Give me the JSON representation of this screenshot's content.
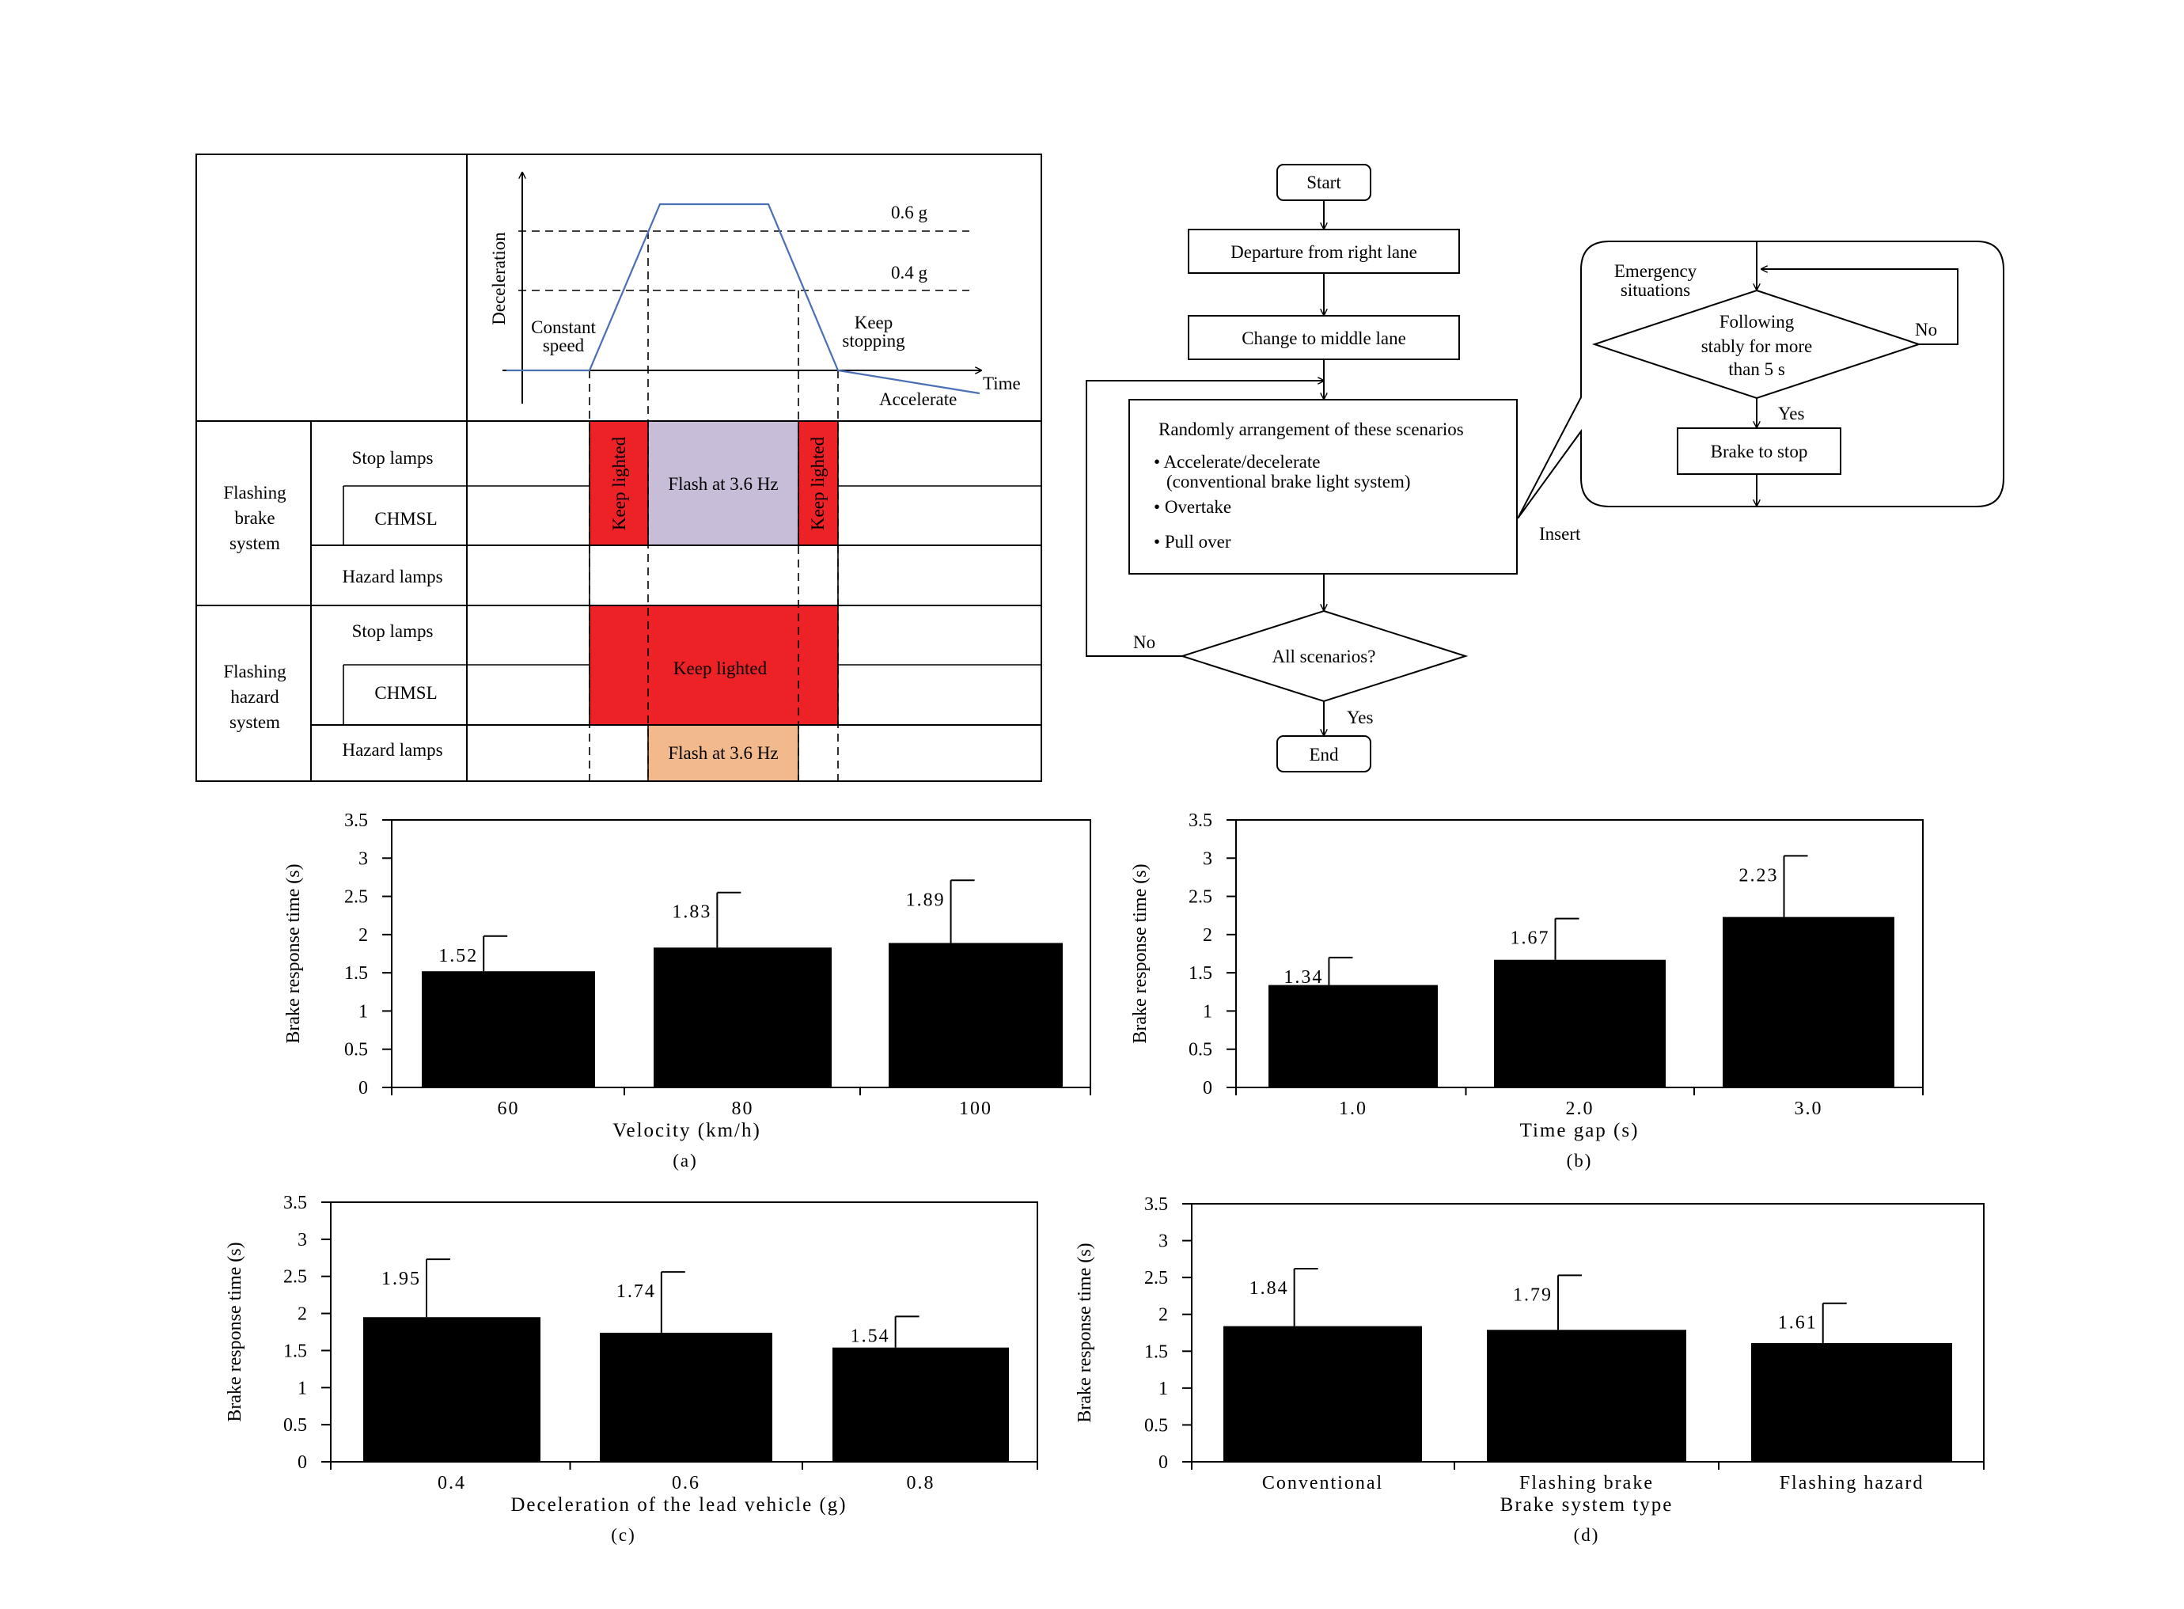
{
  "timing": {
    "axis_y": "Deceleration",
    "axis_x": "Time",
    "level_high": "0.6 g",
    "level_low": "0.4 g",
    "phase_constant": [
      "Constant",
      "speed"
    ],
    "phase_keep": [
      "Keep",
      "stopping"
    ],
    "phase_accel": "Accelerate",
    "group1": [
      "Flashing",
      "brake",
      "system"
    ],
    "group2": [
      "Flashing",
      "hazard",
      "system"
    ],
    "row_stop": "Stop lamps",
    "row_chmsl": "CHMSL",
    "row_hazard": "Hazard lamps",
    "keep_lighted": "Keep lighted",
    "flash": "Flash at 3.6 Hz",
    "colors": {
      "red": "#ec2227",
      "lavender": "#c7bdd8",
      "peach": "#f2b98d",
      "curve": "#4a6fb5"
    }
  },
  "flowchart": {
    "start": "Start",
    "depart": "Departure from right lane",
    "change": "Change to middle lane",
    "random_title": "Randomly arrangement of these scenarios",
    "bullet1": "Accelerate/decelerate",
    "bullet1_sub": "(conventional brake light system)",
    "bullet2": "Overtake",
    "bullet3": "Pull over",
    "decision": "All scenarios?",
    "no": "No",
    "yes": "Yes",
    "end": "End",
    "insert": "Insert",
    "emergency": [
      "Emergency",
      "situations"
    ],
    "follow": [
      "Following",
      "stably for more",
      "than 5 s"
    ],
    "brake_stop": "Brake to stop"
  },
  "chart_data": [
    {
      "type": "bar",
      "panel": "(a)",
      "xlabel": "Velocity (km/h)",
      "ylabel": "Brake response time (s)",
      "categories": [
        "60",
        "80",
        "100"
      ],
      "values": [
        1.52,
        1.83,
        1.89
      ],
      "labels": [
        "1.52",
        "1.83",
        "1.89"
      ],
      "errors": [
        0.46,
        0.72,
        0.82
      ],
      "ylim": [
        0,
        3.5
      ],
      "yticks": [
        "0",
        "0.5",
        "1",
        "1.5",
        "2",
        "2.5",
        "3",
        "3.5"
      ]
    },
    {
      "type": "bar",
      "panel": "(b)",
      "xlabel": "Time gap (s)",
      "ylabel": "Brake response time (s)",
      "categories": [
        "1.0",
        "2.0",
        "3.0"
      ],
      "values": [
        1.34,
        1.67,
        2.23
      ],
      "labels": [
        "1.34",
        "1.67",
        "2.23"
      ],
      "errors": [
        0.36,
        0.54,
        0.8
      ],
      "ylim": [
        0,
        3.5
      ],
      "yticks": [
        "0",
        "0.5",
        "1",
        "1.5",
        "2",
        "2.5",
        "3",
        "3.5"
      ]
    },
    {
      "type": "bar",
      "panel": "(c)",
      "xlabel": "Deceleration of the lead vehicle (g)",
      "ylabel": "Brake response time (s)",
      "categories": [
        "0.4",
        "0.6",
        "0.8"
      ],
      "values": [
        1.95,
        1.74,
        1.54
      ],
      "labels": [
        "1.95",
        "1.74",
        "1.54"
      ],
      "errors": [
        0.78,
        0.82,
        0.42
      ],
      "ylim": [
        0,
        3.5
      ],
      "yticks": [
        "0",
        "0.5",
        "1",
        "1.5",
        "2",
        "2.5",
        "3",
        "3.5"
      ]
    },
    {
      "type": "bar",
      "panel": "(d)",
      "xlabel": "Brake system type",
      "ylabel": "Brake response time (s)",
      "categories": [
        "Conventional",
        "Flashing brake",
        "Flashing hazard"
      ],
      "values": [
        1.84,
        1.79,
        1.61
      ],
      "labels": [
        "1.84",
        "1.79",
        "1.61"
      ],
      "errors": [
        0.78,
        0.74,
        0.54
      ],
      "ylim": [
        0,
        3.5
      ],
      "yticks": [
        "0",
        "0.5",
        "1",
        "1.5",
        "2",
        "2.5",
        "3",
        "3.5"
      ]
    }
  ]
}
